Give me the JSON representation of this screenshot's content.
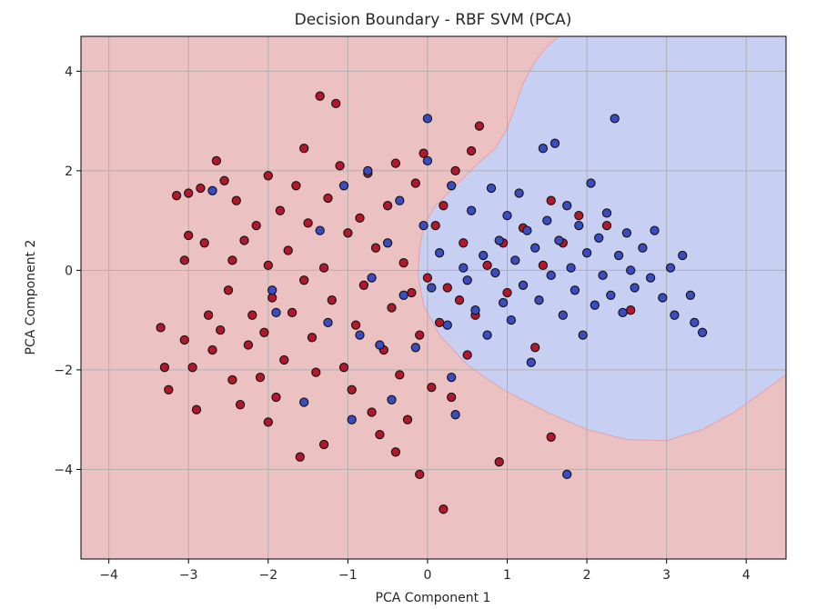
{
  "chart_data": {
    "type": "scatter",
    "title": "Decision Boundary - RBF SVM (PCA)",
    "xlabel": "PCA Component 1",
    "ylabel": "PCA Component 2",
    "xlim": [
      -4.35,
      4.5
    ],
    "ylim": [
      -5.8,
      4.7
    ],
    "xticks": [
      -4,
      -3,
      -2,
      -1,
      0,
      1,
      2,
      3,
      4
    ],
    "yticks": [
      -4,
      -2,
      0,
      2,
      4
    ],
    "xtick_labels": [
      "−4",
      "−3",
      "−2",
      "−1",
      "0",
      "1",
      "2",
      "3",
      "4"
    ],
    "ytick_labels": [
      "−4",
      "−2",
      "0",
      "2",
      "4"
    ],
    "grid": true,
    "colors": {
      "class_red_point": "#b2182b",
      "class_blue_point": "#3b4cc0",
      "region_red": "#ecc1c2",
      "region_blue": "#c7cff3",
      "edge": "#111111",
      "grid": "#b0b0b0"
    },
    "decision_boundary_blue_region": [
      [
        1.65,
        4.7
      ],
      [
        1.5,
        4.5
      ],
      [
        1.35,
        4.2
      ],
      [
        1.2,
        3.75
      ],
      [
        1.1,
        3.3
      ],
      [
        1.0,
        2.85
      ],
      [
        0.85,
        2.45
      ],
      [
        0.6,
        2.1
      ],
      [
        0.35,
        1.7
      ],
      [
        0.1,
        1.3
      ],
      [
        -0.05,
        0.9
      ],
      [
        -0.1,
        0.4
      ],
      [
        -0.12,
        -0.1
      ],
      [
        -0.05,
        -0.7
      ],
      [
        0.15,
        -1.3
      ],
      [
        0.5,
        -1.9
      ],
      [
        0.95,
        -2.4
      ],
      [
        1.5,
        -2.85
      ],
      [
        2.0,
        -3.2
      ],
      [
        2.5,
        -3.4
      ],
      [
        3.0,
        -3.42
      ],
      [
        3.45,
        -3.2
      ],
      [
        3.85,
        -2.85
      ],
      [
        4.2,
        -2.45
      ],
      [
        4.5,
        -2.1
      ],
      [
        4.5,
        4.7
      ]
    ],
    "series": [
      {
        "class": "red",
        "points": [
          [
            -3.35,
            -1.15
          ],
          [
            -3.3,
            -1.95
          ],
          [
            -3.25,
            -2.4
          ],
          [
            -3.15,
            1.5
          ],
          [
            -3.05,
            -1.4
          ],
          [
            -3.05,
            0.2
          ],
          [
            -3.0,
            0.7
          ],
          [
            -3.0,
            1.55
          ],
          [
            -2.95,
            -1.95
          ],
          [
            -2.9,
            -2.8
          ],
          [
            -2.85,
            1.65
          ],
          [
            -2.8,
            0.55
          ],
          [
            -2.75,
            -0.9
          ],
          [
            -2.7,
            -1.6
          ],
          [
            -2.65,
            2.2
          ],
          [
            -2.6,
            -1.2
          ],
          [
            -2.55,
            1.8
          ],
          [
            -2.5,
            -0.4
          ],
          [
            -2.45,
            0.2
          ],
          [
            -2.45,
            -2.2
          ],
          [
            -2.4,
            1.4
          ],
          [
            -2.35,
            -2.7
          ],
          [
            -2.3,
            0.6
          ],
          [
            -2.25,
            -1.5
          ],
          [
            -2.2,
            -0.9
          ],
          [
            -2.15,
            0.9
          ],
          [
            -2.1,
            -2.15
          ],
          [
            -2.05,
            -1.25
          ],
          [
            -2.0,
            0.1
          ],
          [
            -2.0,
            1.9
          ],
          [
            -1.95,
            -0.55
          ],
          [
            -1.9,
            -2.55
          ],
          [
            -1.85,
            1.2
          ],
          [
            -1.8,
            -1.8
          ],
          [
            -1.75,
            0.4
          ],
          [
            -1.7,
            -0.85
          ],
          [
            -1.65,
            1.7
          ],
          [
            -1.6,
            -3.75
          ],
          [
            -1.55,
            -0.2
          ],
          [
            -1.55,
            2.45
          ],
          [
            -1.5,
            0.95
          ],
          [
            -1.45,
            -1.35
          ],
          [
            -1.4,
            -2.05
          ],
          [
            -1.35,
            3.5
          ],
          [
            -1.3,
            0.05
          ],
          [
            -1.25,
            1.45
          ],
          [
            -1.2,
            -0.6
          ],
          [
            -1.15,
            3.35
          ],
          [
            -1.1,
            2.1
          ],
          [
            -1.05,
            -1.95
          ],
          [
            -1.0,
            0.75
          ],
          [
            -0.95,
            -2.4
          ],
          [
            -0.9,
            -1.1
          ],
          [
            -0.85,
            1.05
          ],
          [
            -0.8,
            -0.3
          ],
          [
            -0.75,
            1.95
          ],
          [
            -0.7,
            -2.85
          ],
          [
            -0.65,
            0.45
          ],
          [
            -0.6,
            -3.3
          ],
          [
            -0.55,
            -1.6
          ],
          [
            -0.5,
            1.3
          ],
          [
            -0.45,
            -0.75
          ],
          [
            -0.4,
            2.15
          ],
          [
            -0.35,
            -2.1
          ],
          [
            -0.3,
            0.15
          ],
          [
            -0.25,
            -3.0
          ],
          [
            -0.2,
            -0.45
          ],
          [
            -0.15,
            1.75
          ],
          [
            -0.1,
            -1.3
          ],
          [
            -0.05,
            2.35
          ],
          [
            0.0,
            -0.15
          ],
          [
            0.05,
            -2.35
          ],
          [
            0.1,
            0.9
          ],
          [
            0.15,
            -1.05
          ],
          [
            0.2,
            1.3
          ],
          [
            0.25,
            -0.35
          ],
          [
            0.3,
            -2.55
          ],
          [
            0.35,
            2.0
          ],
          [
            0.4,
            -0.6
          ],
          [
            0.45,
            0.55
          ],
          [
            0.5,
            -1.7
          ],
          [
            0.55,
            2.4
          ],
          [
            0.6,
            -0.9
          ],
          [
            0.65,
            2.9
          ],
          [
            0.75,
            0.1
          ],
          [
            0.9,
            -3.85
          ],
          [
            0.95,
            0.55
          ],
          [
            1.0,
            -0.45
          ],
          [
            1.2,
            0.85
          ],
          [
            1.35,
            -1.55
          ],
          [
            1.45,
            0.1
          ],
          [
            1.55,
            1.4
          ],
          [
            1.55,
            -3.35
          ],
          [
            1.7,
            0.55
          ],
          [
            1.9,
            1.1
          ],
          [
            2.25,
            0.9
          ],
          [
            2.55,
            -0.8
          ],
          [
            -0.4,
            -3.65
          ],
          [
            0.2,
            -4.8
          ],
          [
            -0.1,
            -4.1
          ],
          [
            -1.3,
            -3.5
          ],
          [
            -2.0,
            -3.05
          ]
        ]
      },
      {
        "class": "blue",
        "points": [
          [
            -2.7,
            1.6
          ],
          [
            -1.95,
            -0.4
          ],
          [
            -1.9,
            -0.85
          ],
          [
            -1.55,
            -2.65
          ],
          [
            -1.35,
            0.8
          ],
          [
            -1.25,
            -1.05
          ],
          [
            -1.05,
            1.7
          ],
          [
            -0.95,
            -3.0
          ],
          [
            -0.85,
            -1.3
          ],
          [
            -0.75,
            2.0
          ],
          [
            -0.7,
            -0.15
          ],
          [
            -0.6,
            -1.5
          ],
          [
            -0.5,
            0.55
          ],
          [
            -0.45,
            -2.6
          ],
          [
            -0.35,
            1.4
          ],
          [
            -0.3,
            -0.5
          ],
          [
            -0.15,
            -1.55
          ],
          [
            -0.05,
            0.9
          ],
          [
            0.0,
            3.05
          ],
          [
            0.0,
            2.2
          ],
          [
            0.05,
            -0.35
          ],
          [
            0.15,
            0.35
          ],
          [
            0.25,
            -1.1
          ],
          [
            0.3,
            1.7
          ],
          [
            0.35,
            -2.9
          ],
          [
            0.45,
            0.05
          ],
          [
            0.5,
            -0.2
          ],
          [
            0.55,
            1.2
          ],
          [
            0.6,
            -0.8
          ],
          [
            0.7,
            0.3
          ],
          [
            0.75,
            -1.3
          ],
          [
            0.8,
            1.65
          ],
          [
            0.85,
            -0.05
          ],
          [
            0.9,
            0.6
          ],
          [
            0.95,
            -0.65
          ],
          [
            1.0,
            1.1
          ],
          [
            1.05,
            -1.0
          ],
          [
            1.1,
            0.2
          ],
          [
            1.15,
            1.55
          ],
          [
            1.2,
            -0.3
          ],
          [
            1.25,
            0.8
          ],
          [
            1.3,
            -1.85
          ],
          [
            1.35,
            0.45
          ],
          [
            1.4,
            -0.6
          ],
          [
            1.45,
            2.45
          ],
          [
            1.5,
            1.0
          ],
          [
            1.55,
            -0.1
          ],
          [
            1.6,
            2.55
          ],
          [
            1.65,
            0.6
          ],
          [
            1.7,
            -0.9
          ],
          [
            1.75,
            1.3
          ],
          [
            1.8,
            0.05
          ],
          [
            1.85,
            -0.4
          ],
          [
            1.9,
            0.9
          ],
          [
            1.95,
            -1.3
          ],
          [
            2.0,
            0.35
          ],
          [
            2.05,
            1.75
          ],
          [
            2.1,
            -0.7
          ],
          [
            2.15,
            0.65
          ],
          [
            2.2,
            -0.1
          ],
          [
            2.25,
            1.15
          ],
          [
            2.3,
            -0.5
          ],
          [
            2.35,
            3.05
          ],
          [
            2.4,
            0.3
          ],
          [
            2.45,
            -0.85
          ],
          [
            2.5,
            0.75
          ],
          [
            2.55,
            0.0
          ],
          [
            2.6,
            -0.35
          ],
          [
            2.7,
            0.45
          ],
          [
            2.8,
            -0.15
          ],
          [
            2.85,
            0.8
          ],
          [
            2.95,
            -0.55
          ],
          [
            3.05,
            0.05
          ],
          [
            3.1,
            -0.9
          ],
          [
            3.2,
            0.3
          ],
          [
            3.3,
            -0.5
          ],
          [
            3.35,
            -1.05
          ],
          [
            3.45,
            -1.25
          ],
          [
            1.75,
            -4.1
          ],
          [
            0.3,
            -2.15
          ]
        ]
      }
    ]
  }
}
